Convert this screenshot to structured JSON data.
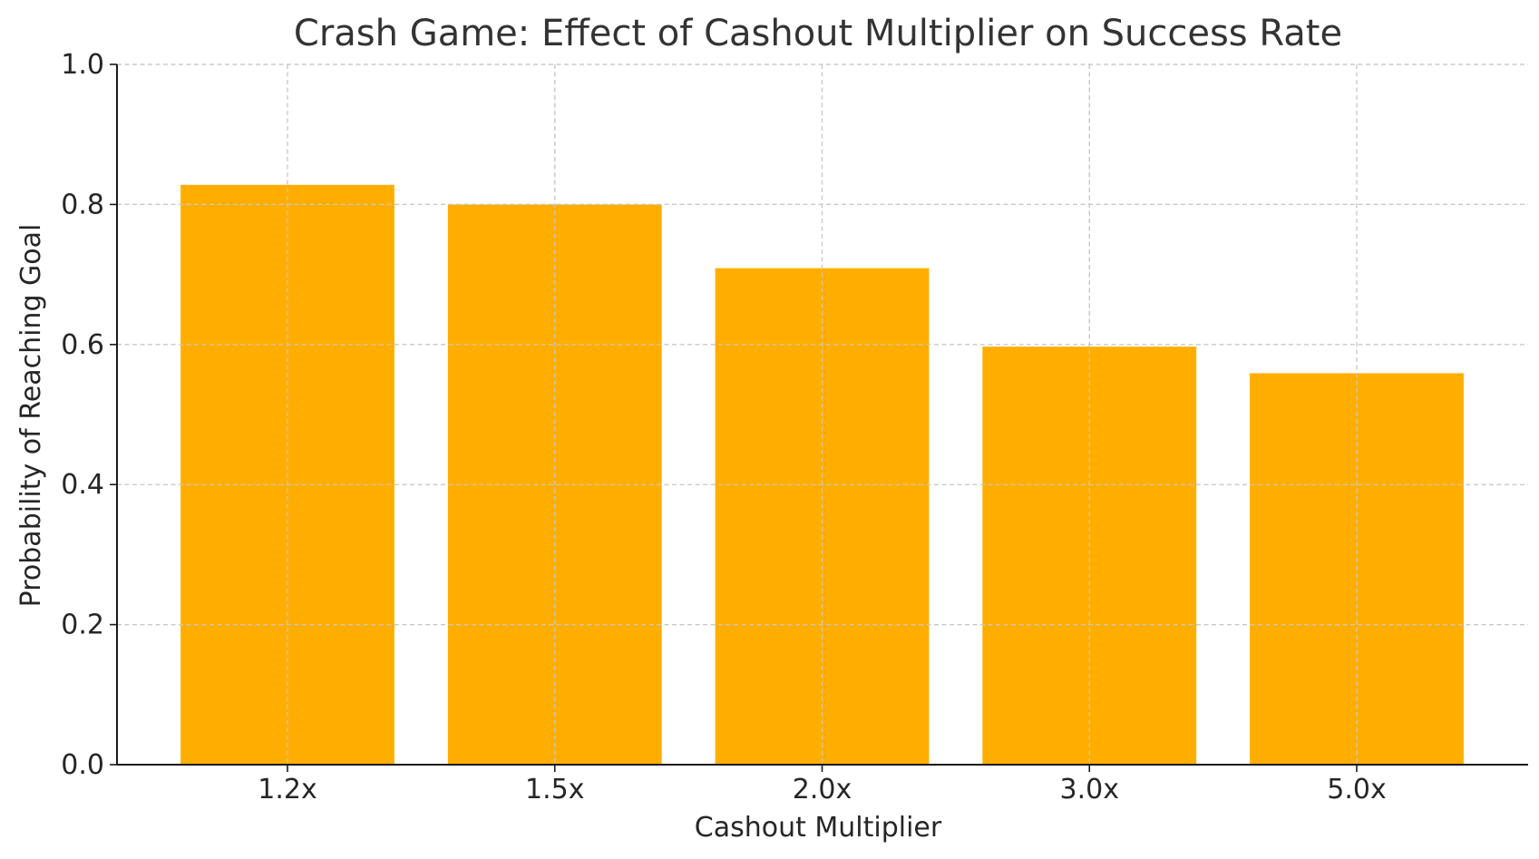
{
  "chart_data": {
    "type": "bar",
    "title": "Crash Game: Effect of Cashout Multiplier on Success Rate",
    "xlabel": "Cashout Multiplier",
    "ylabel": "Probability of Reaching Goal",
    "categories": [
      "1.2x",
      "1.5x",
      "2.0x",
      "3.0x",
      "5.0x"
    ],
    "values": [
      0.828,
      0.8,
      0.709,
      0.597,
      0.559
    ],
    "ylim": [
      0,
      1.0
    ],
    "yticks": [
      "0.0",
      "0.2",
      "0.4",
      "0.6",
      "0.8",
      "1.0"
    ],
    "grid": true,
    "colors": {
      "bar": "#FFAE00"
    }
  }
}
